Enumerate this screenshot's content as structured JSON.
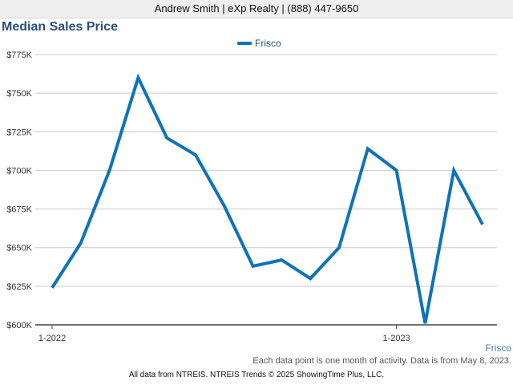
{
  "header": {
    "agent": "Andrew Smith | eXp Realty | (888) 447-9650"
  },
  "chart_data": {
    "type": "line",
    "title": "Median Sales Price",
    "x": [
      "2022-01",
      "2022-02",
      "2022-03",
      "2022-04",
      "2022-05",
      "2022-06",
      "2022-07",
      "2022-08",
      "2022-09",
      "2022-10",
      "2022-11",
      "2022-12",
      "2023-01",
      "2023-02",
      "2023-03",
      "2023-04"
    ],
    "x_tick_labels": [
      {
        "month": "2022-01",
        "label": "1-2022"
      },
      {
        "month": "2023-01",
        "label": "1-2023"
      }
    ],
    "series": [
      {
        "name": "Frisco",
        "values": [
          624000,
          653000,
          700000,
          760000,
          721000,
          710000,
          677000,
          638000,
          642000,
          630000,
          650000,
          714000,
          700000,
          601000,
          700000,
          665000
        ]
      }
    ],
    "ylim": [
      600000,
      775000
    ],
    "y_ticks": [
      {
        "value": 600000,
        "label": "$600K"
      },
      {
        "value": 625000,
        "label": "$625K"
      },
      {
        "value": 650000,
        "label": "$650K"
      },
      {
        "value": 675000,
        "label": "$675K"
      },
      {
        "value": 700000,
        "label": "$700K"
      },
      {
        "value": 725000,
        "label": "$725K"
      },
      {
        "value": 750000,
        "label": "$750K"
      },
      {
        "value": 775000,
        "label": "$775K"
      }
    ],
    "grid": true,
    "legend": "top-center",
    "line_color": "#0e73b8"
  },
  "corner_label": "Frisco",
  "note": "Each data point is one month of activity. Data is from May 8, 2023.",
  "footer": "All data from NTREIS. NTREIS Trends © 2025 ShowingTime Plus, LLC."
}
